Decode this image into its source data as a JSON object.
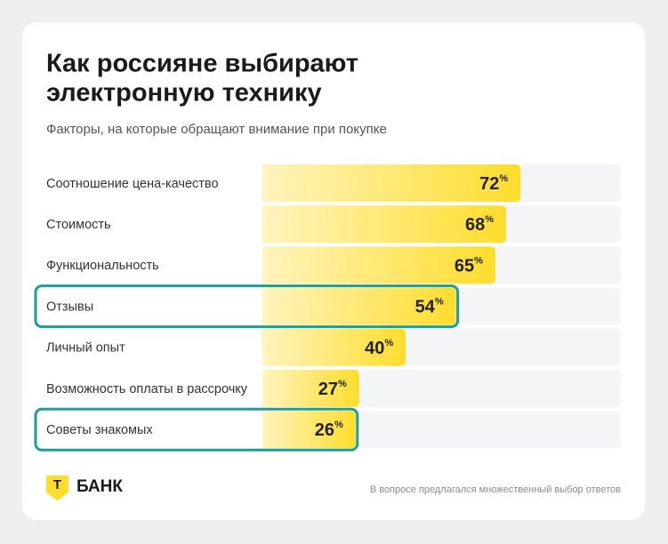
{
  "chart_data": {
    "type": "hbar",
    "title": [
      "Как россияне выбирают",
      "электронную технику"
    ],
    "subtitle": "Факторы, на которые обращают внимание при покупке",
    "categories": [
      "Соотношение цена-качество",
      "Стоимость",
      "Функциональность",
      "Отзывы",
      "Личный опыт",
      "Возможность оплаты в рассрочку",
      "Советы знакомых"
    ],
    "values": [
      72,
      68,
      65,
      54,
      40,
      27,
      26
    ],
    "unit": "%",
    "highlighted": [
      false,
      false,
      false,
      true,
      false,
      false,
      true
    ],
    "highlight_color": "#1a9e96",
    "colors": [
      "#fff4bf",
      "#ffdd2d"
    ],
    "track_color": "#f4f5f7",
    "xlim": [
      0,
      100
    ],
    "footnote": "В вопросе предлагался множественный выбор ответов",
    "brand": {
      "mark": "Т",
      "name": "БАНК"
    }
  }
}
